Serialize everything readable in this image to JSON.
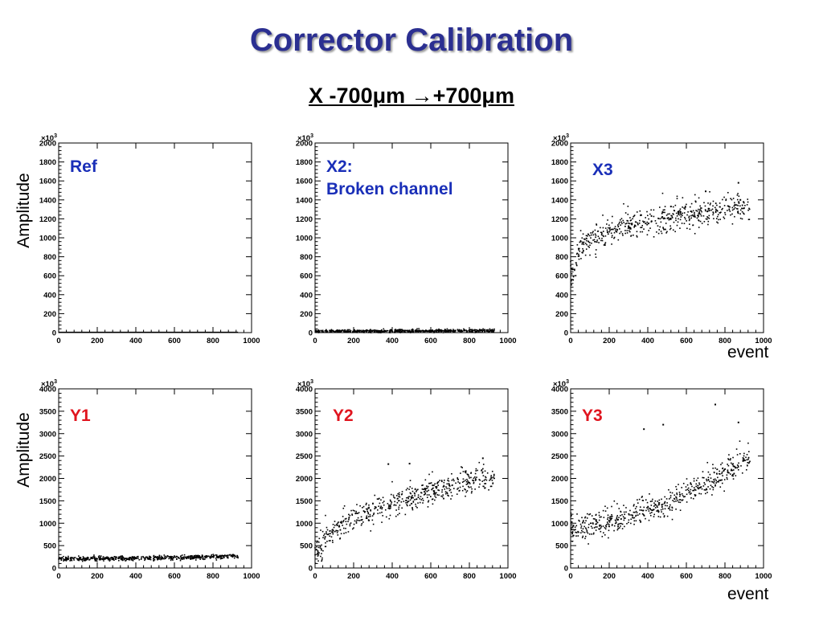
{
  "title": "Corrector Calibration",
  "subtitle": {
    "text": "X -700μm →+700μm"
  },
  "axis_texts": {
    "ylabel_top": "Amplitude",
    "ylabel_bottom": "Amplitude",
    "xlabel_top": "event",
    "xlabel_bottom": "event",
    "exponent": "×10"
  },
  "colors": {
    "title": "#2b2f91",
    "label_blue": "#1a2fb8",
    "label_red": "#e0141e"
  },
  "chart_data": [
    {
      "type": "scatter",
      "panel": "Ref",
      "label": "Ref",
      "label_color": "#1a2fb8",
      "xlim": [
        0,
        1000
      ],
      "ylim": [
        0,
        2000
      ],
      "xticks": [
        0,
        200,
        400,
        600,
        800,
        1000
      ],
      "yticks": [
        0,
        200,
        400,
        600,
        800,
        1000,
        1200,
        1400,
        1600,
        1800,
        2000
      ],
      "y_multiplier": "×10^3",
      "points": [
        [
          0,
          0
        ],
        [
          930,
          0
        ]
      ],
      "trend": "flat at 0"
    },
    {
      "type": "scatter",
      "panel": "X2",
      "label": "X2:\nBroken channel",
      "label_color": "#1a2fb8",
      "xlim": [
        0,
        1000
      ],
      "ylim": [
        0,
        2000
      ],
      "xticks": [
        0,
        200,
        400,
        600,
        800,
        1000
      ],
      "yticks": [
        0,
        200,
        400,
        600,
        800,
        1000,
        1200,
        1400,
        1600,
        1800,
        2000
      ],
      "y_multiplier": "×10^3",
      "points": [
        [
          0,
          15
        ],
        [
          930,
          20
        ]
      ],
      "trend": "flat near 20"
    },
    {
      "type": "scatter",
      "panel": "X3",
      "label": "X3",
      "label_color": "#1a2fb8",
      "xlim": [
        0,
        1000
      ],
      "ylim": [
        0,
        2000
      ],
      "xticks": [
        0,
        200,
        400,
        600,
        800,
        1000
      ],
      "yticks": [
        0,
        200,
        400,
        600,
        800,
        1000,
        1200,
        1400,
        1600,
        1800,
        2000
      ],
      "y_multiplier": "×10^3",
      "points": [
        [
          0,
          550
        ],
        [
          20,
          700
        ],
        [
          50,
          900
        ],
        [
          100,
          980
        ],
        [
          200,
          1060
        ],
        [
          300,
          1130
        ],
        [
          400,
          1180
        ],
        [
          500,
          1200
        ],
        [
          600,
          1230
        ],
        [
          700,
          1260
        ],
        [
          800,
          1300
        ],
        [
          930,
          1340
        ]
      ],
      "outliers": [
        [
          520,
          1330
        ],
        [
          700,
          1490
        ],
        [
          870,
          1580
        ],
        [
          880,
          1400
        ]
      ]
    },
    {
      "type": "scatter",
      "panel": "Y1",
      "label": "Y1",
      "label_color": "#e0141e",
      "xlim": [
        0,
        1000
      ],
      "ylim": [
        0,
        4000
      ],
      "xticks": [
        0,
        200,
        400,
        600,
        800,
        1000
      ],
      "yticks": [
        0,
        500,
        1000,
        1500,
        2000,
        2500,
        3000,
        3500,
        4000
      ],
      "y_multiplier": "×10^3",
      "points": [
        [
          0,
          200
        ],
        [
          300,
          215
        ],
        [
          600,
          230
        ],
        [
          930,
          270
        ]
      ],
      "trend": "flat ~200-270"
    },
    {
      "type": "scatter",
      "panel": "Y2",
      "label": "Y2",
      "label_color": "#e0141e",
      "xlim": [
        0,
        1000
      ],
      "ylim": [
        0,
        4000
      ],
      "xticks": [
        0,
        200,
        400,
        600,
        800,
        1000
      ],
      "yticks": [
        0,
        500,
        1000,
        1500,
        2000,
        2500,
        3000,
        3500,
        4000
      ],
      "y_multiplier": "×10^3",
      "points": [
        [
          0,
          250
        ],
        [
          50,
          600
        ],
        [
          100,
          850
        ],
        [
          200,
          1100
        ],
        [
          300,
          1250
        ],
        [
          400,
          1400
        ],
        [
          500,
          1550
        ],
        [
          600,
          1700
        ],
        [
          700,
          1800
        ],
        [
          800,
          1950
        ],
        [
          930,
          2000
        ]
      ],
      "outliers": [
        [
          380,
          2320
        ],
        [
          490,
          2330
        ],
        [
          870,
          2450
        ]
      ]
    },
    {
      "type": "scatter",
      "panel": "Y3",
      "label": "Y3",
      "label_color": "#e0141e",
      "xlim": [
        0,
        1000
      ],
      "ylim": [
        0,
        4000
      ],
      "xticks": [
        0,
        200,
        400,
        600,
        800,
        1000
      ],
      "yticks": [
        0,
        500,
        1000,
        1500,
        2000,
        2500,
        3000,
        3500,
        4000
      ],
      "y_multiplier": "×10^3",
      "points": [
        [
          0,
          850
        ],
        [
          100,
          920
        ],
        [
          200,
          1030
        ],
        [
          300,
          1150
        ],
        [
          400,
          1300
        ],
        [
          500,
          1450
        ],
        [
          600,
          1650
        ],
        [
          700,
          1900
        ],
        [
          800,
          2150
        ],
        [
          930,
          2450
        ]
      ],
      "outliers": [
        [
          380,
          3100
        ],
        [
          480,
          3200
        ],
        [
          750,
          3650
        ],
        [
          870,
          3250
        ]
      ]
    }
  ]
}
